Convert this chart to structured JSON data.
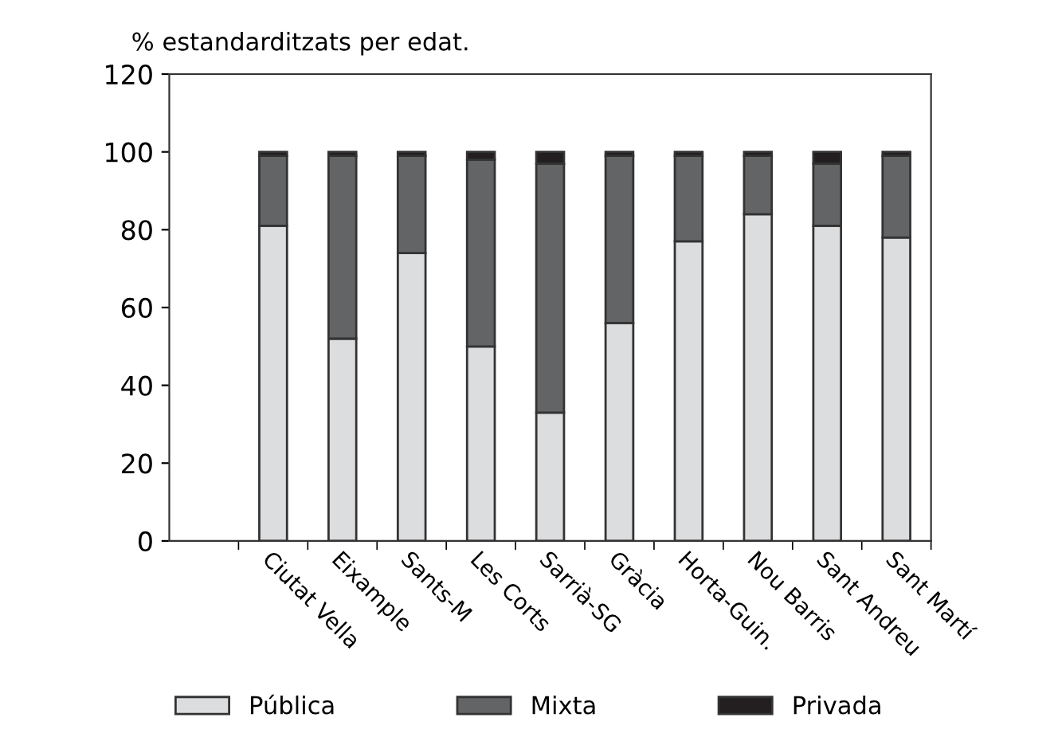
{
  "chart_data": {
    "type": "bar",
    "stacked": true,
    "ylabel": "% estandarditzats per edat.",
    "categories": [
      null,
      "Ciutat Vella",
      "Eixample",
      "Sants-M",
      "Les Corts",
      "Sarrià-SG",
      "Gràcia",
      "Horta-Guin.",
      "Nou Barris",
      "Sant Andreu",
      "Sant Martí"
    ],
    "series": [
      {
        "name": "Pública",
        "color": "#dcdddf",
        "values": [
          null,
          81,
          52,
          74,
          50,
          33,
          56,
          77,
          84,
          81,
          78
        ]
      },
      {
        "name": "Mixta",
        "color": "#636465",
        "values": [
          null,
          18,
          47,
          25,
          48,
          64,
          43,
          22,
          15,
          16,
          21
        ]
      },
      {
        "name": "Privada",
        "color": "#231f20",
        "values": [
          null,
          1,
          1,
          1,
          2,
          3,
          1,
          1,
          1,
          3,
          1
        ]
      }
    ],
    "ylim": [
      0,
      120
    ],
    "yticks": [
      0,
      20,
      40,
      60,
      80,
      100,
      120
    ],
    "legend": "bottom",
    "grid": false
  }
}
